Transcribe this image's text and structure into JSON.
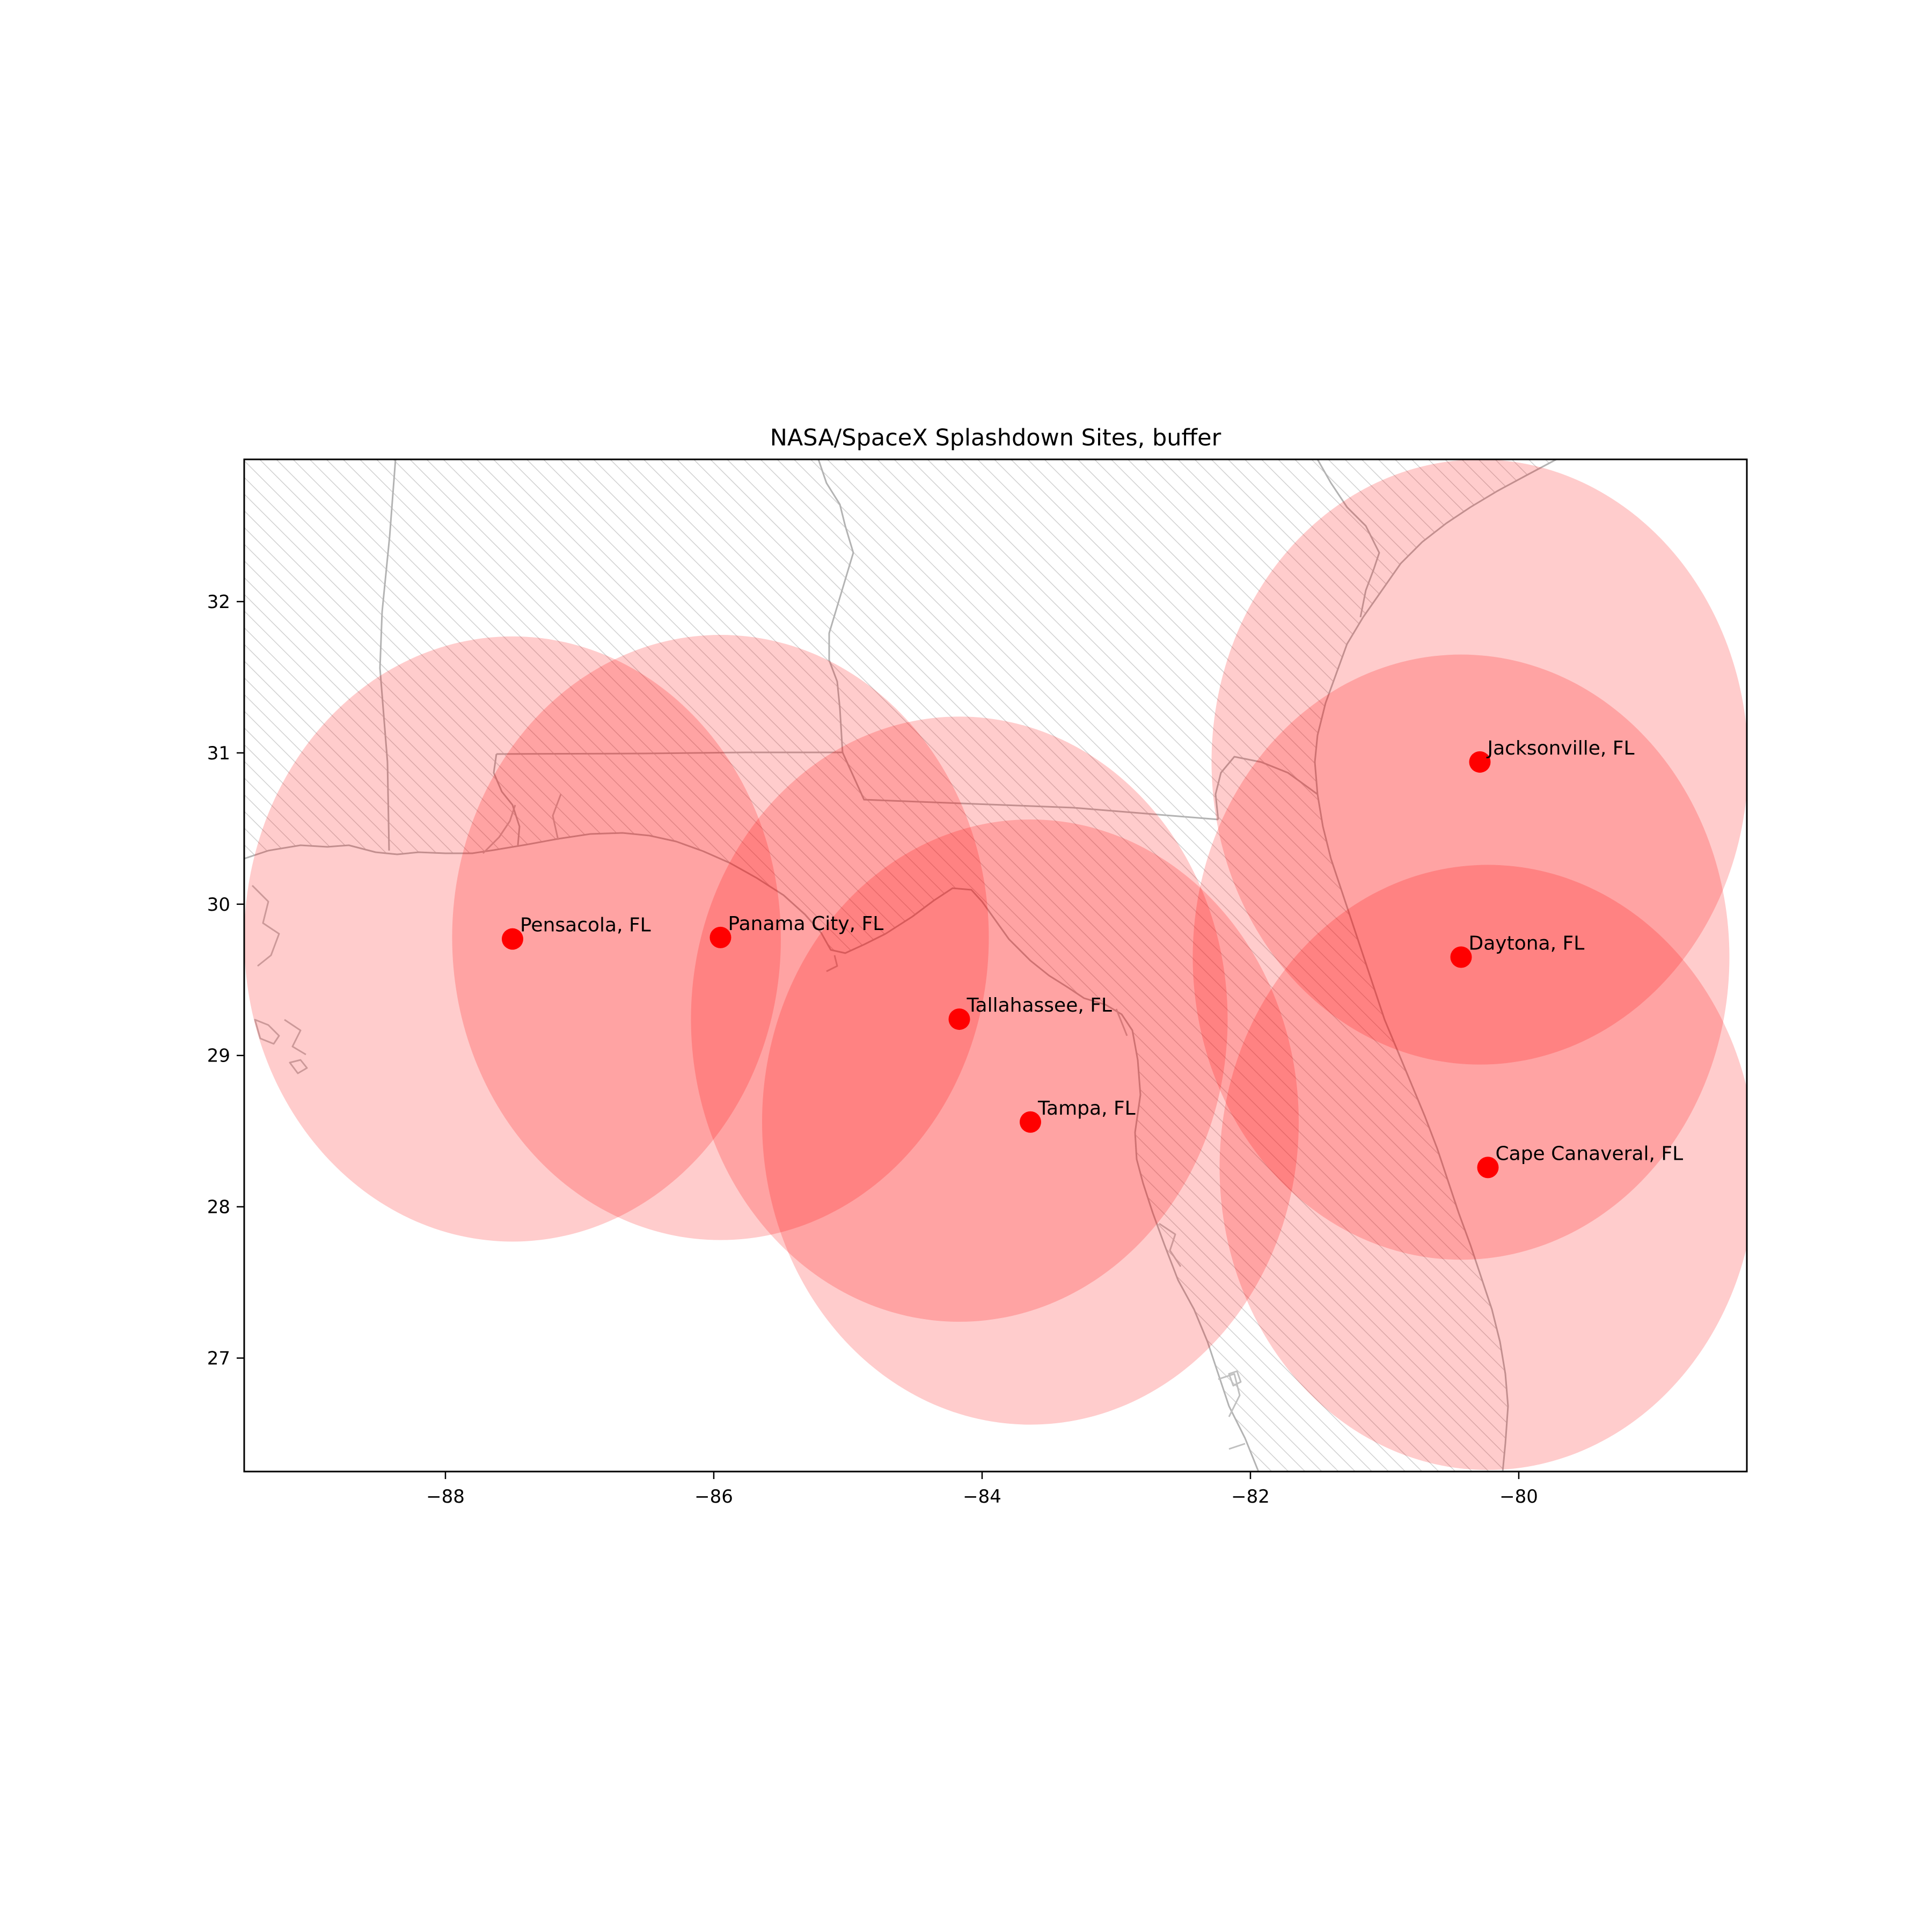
{
  "figure": {
    "title": "NASA/SpaceX Splashdown Sites, buffer"
  },
  "colors": {
    "site": "#ff0000",
    "buffer": "#ff0000",
    "land_edge": "#b3b3b3",
    "hatch": "#d0d0d0"
  },
  "chart_data": {
    "type": "scatter",
    "title": "NASA/SpaceX Splashdown Sites, buffer",
    "xlim": [
      -89.5,
      -78.3
    ],
    "ylim": [
      26.25,
      32.94
    ],
    "x_ticks": [
      -88,
      -86,
      -84,
      -82,
      -80
    ],
    "x_tick_labels": [
      "−88",
      "−86",
      "−84",
      "−82",
      "−80"
    ],
    "y_ticks": [
      27,
      28,
      29,
      30,
      31,
      32
    ],
    "y_tick_labels": [
      "27",
      "28",
      "29",
      "30",
      "31",
      "32"
    ],
    "grid": false,
    "buffer_radius_deg": 2.0,
    "sites": [
      {
        "name": "Pensacola, FL",
        "lon": -87.5,
        "lat": 29.77
      },
      {
        "name": "Panama City, FL",
        "lon": -85.95,
        "lat": 29.78
      },
      {
        "name": "Tallahassee, FL",
        "lon": -84.17,
        "lat": 29.24
      },
      {
        "name": "Tampa, FL",
        "lon": -83.64,
        "lat": 28.56
      },
      {
        "name": "Jacksonville, FL",
        "lon": -80.29,
        "lat": 30.94
      },
      {
        "name": "Daytona, FL",
        "lon": -80.43,
        "lat": 29.65
      },
      {
        "name": "Cape Canaveral, FL",
        "lon": -80.23,
        "lat": 28.26
      }
    ]
  }
}
